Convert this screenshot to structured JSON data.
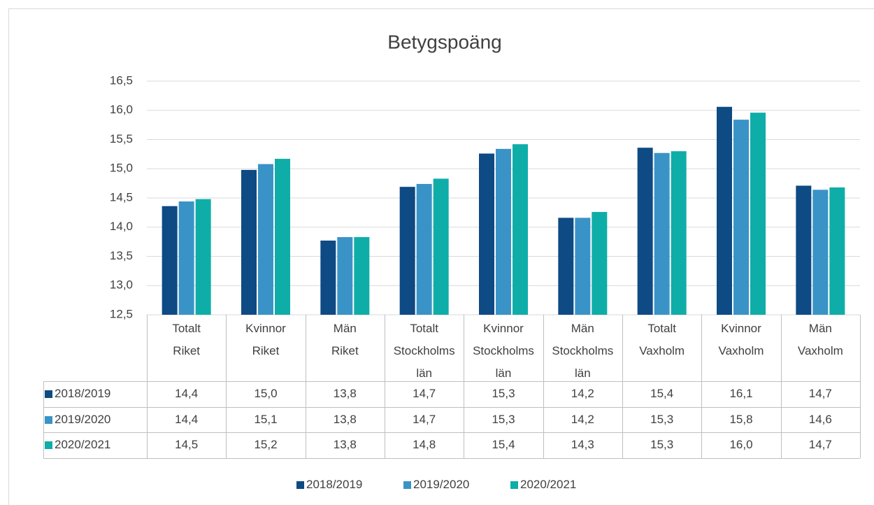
{
  "chart_data": {
    "type": "bar",
    "title": "Betygspoäng",
    "categories": [
      "Totalt Riket",
      "Kvinnor Riket",
      "Män Riket",
      "Totalt Stockholms län",
      "Kvinnor Stockholms län",
      "Män Stockholms län",
      "Totalt Vaxholm",
      "Kvinnor Vaxholm",
      "Män Vaxholm"
    ],
    "series": [
      {
        "name": "2018/2019",
        "color": "#0e4a84",
        "values": [
          14.36,
          14.98,
          13.77,
          14.69,
          15.26,
          14.16,
          15.36,
          16.06,
          14.71
        ],
        "value_labels": [
          "14,4",
          "15,0",
          "13,8",
          "14,7",
          "15,3",
          "14,2",
          "15,4",
          "16,1",
          "14,7"
        ]
      },
      {
        "name": "2019/2020",
        "color": "#3a93c6",
        "values": [
          14.44,
          15.08,
          13.83,
          14.74,
          15.34,
          14.16,
          15.27,
          15.84,
          14.64
        ],
        "value_labels": [
          "14,4",
          "15,1",
          "13,8",
          "14,7",
          "15,3",
          "14,2",
          "15,3",
          "15,8",
          "14,6"
        ]
      },
      {
        "name": "2020/2021",
        "color": "#0fada8",
        "values": [
          14.48,
          15.17,
          13.83,
          14.83,
          15.42,
          14.26,
          15.3,
          15.96,
          14.68
        ],
        "value_labels": [
          "14,5",
          "15,2",
          "13,8",
          "14,8",
          "15,4",
          "14,3",
          "15,3",
          "16,0",
          "14,7"
        ]
      }
    ],
    "ylim": [
      12.5,
      16.5
    ],
    "yticks": [
      {
        "value": 12.5,
        "label": "12,5"
      },
      {
        "value": 13,
        "label": "13,0"
      },
      {
        "value": 13.5,
        "label": "13,5"
      },
      {
        "value": 14,
        "label": "14,0"
      },
      {
        "value": 14.5,
        "label": "14,5"
      },
      {
        "value": 15,
        "label": "15,0"
      },
      {
        "value": 15.5,
        "label": "15,5"
      },
      {
        "value": 16,
        "label": "16,0"
      },
      {
        "value": 16.5,
        "label": "16,5"
      }
    ],
    "grid": true,
    "legend": "bottom"
  }
}
